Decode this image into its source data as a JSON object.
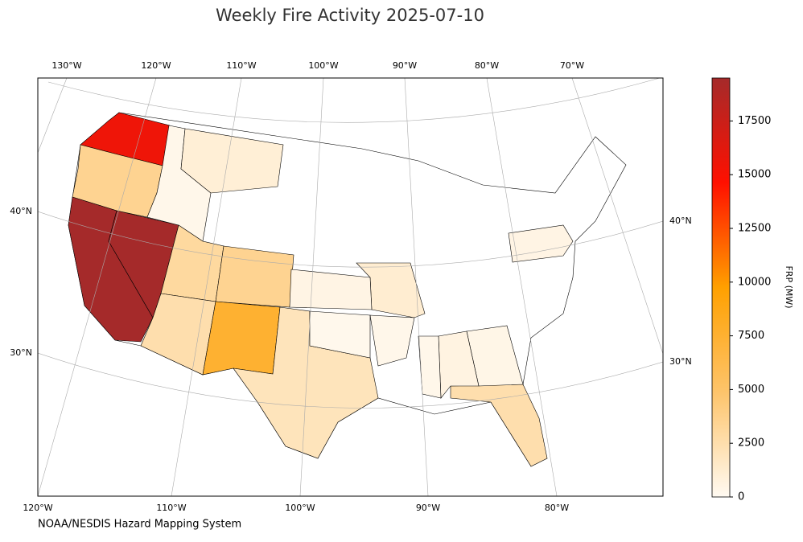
{
  "chart_data": {
    "type": "choropleth",
    "title": "Weekly Fire Activity 2025-07-10",
    "source": "NOAA/NESDIS Hazard Mapping System",
    "colorbar_label": "FRP (MW)",
    "x_labels_top": [
      "130°W",
      "120°W",
      "110°W",
      "100°W",
      "90°W",
      "80°W",
      "70°W"
    ],
    "x_labels_bottom": [
      "120°W",
      "110°W",
      "100°W",
      "90°W",
      "80°W"
    ],
    "y_labels_left": [
      "40°N",
      "30°N"
    ],
    "y_labels_right": [
      "40°N",
      "30°N"
    ],
    "values": [
      15500,
      3500,
      19500,
      19500,
      300,
      1000,
      3000,
      3500,
      2500,
      7500,
      2000,
      1200,
      500,
      2500,
      500,
      200,
      400,
      600,
      300,
      300
    ],
    "colors": [
      "#fffaf2",
      "#fdc46b",
      "#ffa000",
      "#ff1000",
      "#a52a2a"
    ],
    "ylim": [
      0,
      19500
    ],
    "yticks": [
      0,
      2500,
      5000,
      7500,
      10000,
      12500,
      15000,
      17500
    ]
  }
}
